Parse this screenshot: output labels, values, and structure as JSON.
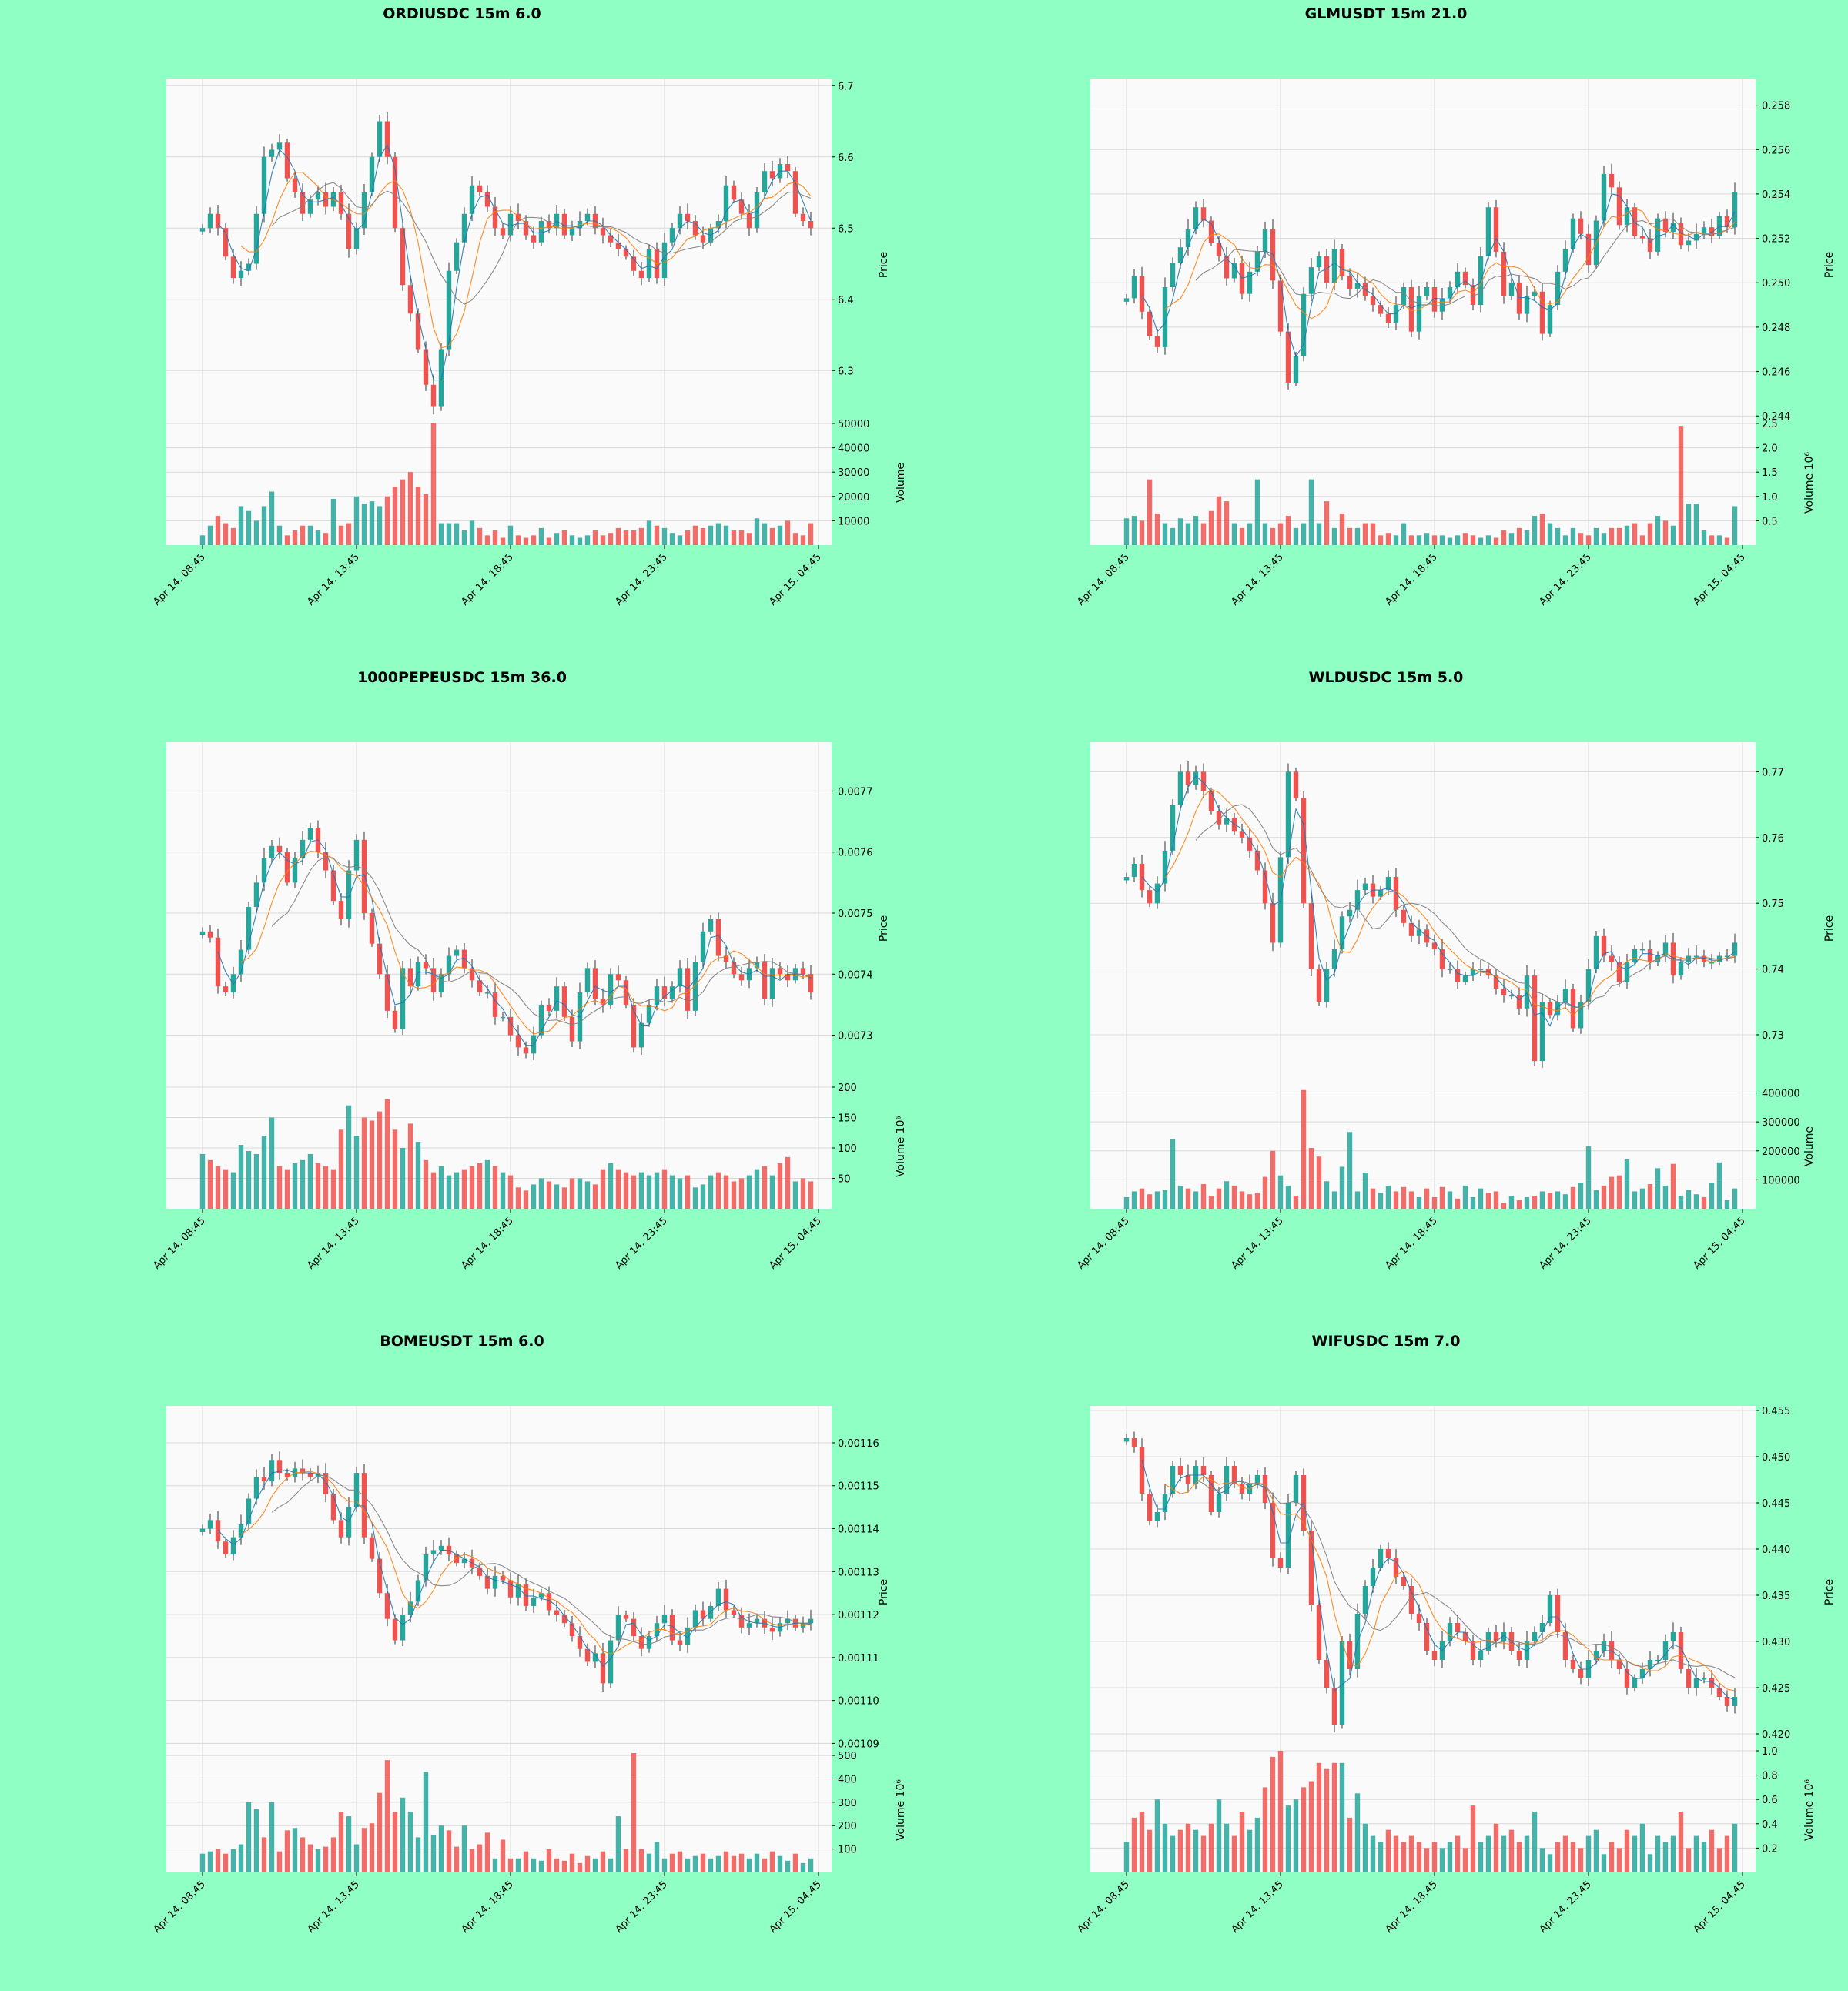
{
  "figure": {
    "background": "#90ffc4",
    "panel_background": "#fafafa",
    "grid_color": "#d9d9d9",
    "up_color": "#26a69a",
    "down_color": "#ef5350",
    "ma_fast_color": "#1f77b4",
    "ma_mid_color": "#ff7f0e",
    "ma_slow_color": "#7f7f7f"
  },
  "chart_data": [
    {
      "type": "candlestick",
      "title": "ORDIUSDC 15m 6.0",
      "ylabel": "Price",
      "price_ylim": [
        6.23,
        6.71
      ],
      "price_ticks": [
        "6.3",
        "6.4",
        "6.5",
        "6.6",
        "6.7"
      ],
      "volume_label": "Volume",
      "volume_ylim": [
        0,
        50000
      ],
      "volume_ticks": [
        "10000",
        "20000",
        "30000",
        "40000",
        "50000"
      ],
      "x_tick_labels": [
        "Apr 14, 08:45",
        "Apr 14, 13:45",
        "Apr 14, 18:45",
        "Apr 14, 23:45",
        "Apr 15, 04:45"
      ],
      "close": [
        6.5,
        6.52,
        6.5,
        6.46,
        6.43,
        6.44,
        6.45,
        6.52,
        6.6,
        6.61,
        6.62,
        6.57,
        6.55,
        6.52,
        6.54,
        6.55,
        6.53,
        6.55,
        6.52,
        6.47,
        6.5,
        6.55,
        6.6,
        6.65,
        6.6,
        6.5,
        6.42,
        6.38,
        6.33,
        6.28,
        6.25,
        6.33,
        6.44,
        6.48,
        6.52,
        6.56,
        6.55,
        6.53,
        6.5,
        6.49,
        6.52,
        6.51,
        6.49,
        6.48,
        6.51,
        6.5,
        6.52,
        6.49,
        6.5,
        6.51,
        6.52,
        6.5,
        6.49,
        6.48,
        6.47,
        6.46,
        6.44,
        6.43,
        6.47,
        6.43,
        6.48,
        6.5,
        6.52,
        6.51,
        6.49,
        6.48,
        6.5,
        6.51,
        6.56,
        6.54,
        6.52,
        6.5,
        6.55,
        6.58,
        6.57,
        6.59,
        6.58,
        6.52,
        6.51,
        6.5
      ],
      "volume": [
        4000,
        8000,
        12000,
        9000,
        7000,
        16000,
        14000,
        10000,
        16000,
        22000,
        8000,
        4000,
        6000,
        8000,
        8000,
        6000,
        5000,
        19000,
        8000,
        9000,
        20000,
        17000,
        18000,
        16000,
        20000,
        24000,
        27000,
        30000,
        24000,
        21000,
        50000,
        9000,
        9000,
        9000,
        6000,
        10000,
        7000,
        4000,
        6000,
        3000,
        8000,
        4000,
        3000,
        4000,
        7000,
        3000,
        5000,
        6000,
        4000,
        3000,
        4000,
        6000,
        4000,
        5000,
        7000,
        6000,
        6000,
        7000,
        10000,
        8000,
        7000,
        5000,
        4000,
        6000,
        8000,
        7000,
        8000,
        9000,
        8000,
        6000,
        6000,
        5000,
        11000,
        9000,
        7000,
        8000,
        10000,
        5000,
        4000,
        9000
      ]
    },
    {
      "type": "candlestick",
      "title": "GLMUSDT 15m 21.0",
      "ylabel": "Price",
      "price_ylim": [
        0.2438,
        0.2592
      ],
      "price_ticks": [
        "0.244",
        "0.246",
        "0.248",
        "0.250",
        "0.252",
        "0.254",
        "0.256",
        "0.258"
      ],
      "volume_label": "Volume  10⁶",
      "volume_ylim": [
        0,
        2.5
      ],
      "volume_ticks": [
        "0.5",
        "1.0",
        "1.5",
        "2.0",
        "2.5"
      ],
      "x_tick_labels": [
        "Apr 14, 08:45",
        "Apr 14, 13:45",
        "Apr 14, 18:45",
        "Apr 14, 23:45",
        "Apr 15, 04:45"
      ],
      "close": [
        0.2493,
        0.2503,
        0.2487,
        0.2476,
        0.2471,
        0.2498,
        0.2509,
        0.2516,
        0.2524,
        0.2534,
        0.2528,
        0.2518,
        0.2512,
        0.2502,
        0.2509,
        0.2495,
        0.2505,
        0.2514,
        0.2524,
        0.2501,
        0.2478,
        0.2455,
        0.2467,
        0.2495,
        0.2507,
        0.2512,
        0.25,
        0.2515,
        0.2503,
        0.2497,
        0.25,
        0.2494,
        0.249,
        0.2486,
        0.2482,
        0.249,
        0.2498,
        0.2478,
        0.2494,
        0.2498,
        0.2487,
        0.2493,
        0.2498,
        0.2505,
        0.2499,
        0.249,
        0.2512,
        0.2534,
        0.2514,
        0.2494,
        0.25,
        0.2486,
        0.2494,
        0.2496,
        0.2477,
        0.249,
        0.2505,
        0.2515,
        0.2529,
        0.2522,
        0.2508,
        0.2528,
        0.2549,
        0.2543,
        0.2526,
        0.2534,
        0.2521,
        0.252,
        0.2514,
        0.2529,
        0.2523,
        0.2527,
        0.2517,
        0.2519,
        0.2522,
        0.2525,
        0.2521,
        0.253,
        0.2525,
        0.2541
      ],
      "volume": [
        0.55,
        0.6,
        0.5,
        1.35,
        0.65,
        0.45,
        0.35,
        0.55,
        0.45,
        0.6,
        0.45,
        0.7,
        1.0,
        0.9,
        0.45,
        0.35,
        0.45,
        1.35,
        0.45,
        0.35,
        0.45,
        0.6,
        0.35,
        0.45,
        1.35,
        0.45,
        0.9,
        0.35,
        0.65,
        0.35,
        0.35,
        0.45,
        0.45,
        0.2,
        0.25,
        0.2,
        0.45,
        0.2,
        0.2,
        0.25,
        0.2,
        0.2,
        0.15,
        0.2,
        0.25,
        0.2,
        0.15,
        0.2,
        0.15,
        0.3,
        0.25,
        0.35,
        0.3,
        0.6,
        0.65,
        0.45,
        0.35,
        0.2,
        0.35,
        0.25,
        0.2,
        0.35,
        0.25,
        0.35,
        0.35,
        0.4,
        0.45,
        0.2,
        0.45,
        0.6,
        0.5,
        0.4,
        2.45,
        0.85,
        0.85,
        0.3,
        0.2,
        0.2,
        0.15,
        0.8
      ]
    },
    {
      "type": "candlestick",
      "title": "1000PEPEUSDC 15m 36.0",
      "ylabel": "Price",
      "price_ylim": [
        0.00722,
        0.00778
      ],
      "price_ticks": [
        "0.0073",
        "0.0074",
        "0.0075",
        "0.0076",
        "0.0077"
      ],
      "volume_label": "Volume  10⁶",
      "volume_ylim": [
        0,
        200
      ],
      "volume_ticks": [
        "50",
        "100",
        "150",
        "200"
      ],
      "x_tick_labels": [
        "Apr 14, 08:45",
        "Apr 14, 13:45",
        "Apr 14, 18:45",
        "Apr 14, 23:45",
        "Apr 15, 04:45"
      ],
      "close": [
        0.00747,
        0.00746,
        0.00738,
        0.00737,
        0.0074,
        0.00744,
        0.00751,
        0.00755,
        0.00759,
        0.00761,
        0.0076,
        0.00755,
        0.00759,
        0.00762,
        0.00764,
        0.0076,
        0.00757,
        0.00752,
        0.00749,
        0.00757,
        0.00762,
        0.0075,
        0.00745,
        0.0074,
        0.00734,
        0.00731,
        0.00741,
        0.00738,
        0.00742,
        0.00741,
        0.00737,
        0.0074,
        0.00743,
        0.00744,
        0.00741,
        0.00739,
        0.00737,
        0.00737,
        0.00733,
        0.00733,
        0.0073,
        0.00728,
        0.00727,
        0.0073,
        0.00735,
        0.00734,
        0.00738,
        0.00733,
        0.00729,
        0.00737,
        0.00741,
        0.00736,
        0.00735,
        0.0074,
        0.00739,
        0.00735,
        0.00728,
        0.00732,
        0.00735,
        0.00738,
        0.00736,
        0.00738,
        0.00741,
        0.00734,
        0.00742,
        0.00747,
        0.00749,
        0.00743,
        0.00742,
        0.0074,
        0.00739,
        0.00741,
        0.00742,
        0.00736,
        0.00741,
        0.0074,
        0.00739,
        0.00741,
        0.0074,
        0.00737
      ],
      "volume": [
        90,
        80,
        70,
        65,
        60,
        105,
        95,
        90,
        120,
        150,
        70,
        65,
        75,
        80,
        90,
        75,
        70,
        65,
        130,
        170,
        120,
        150,
        145,
        160,
        180,
        130,
        100,
        140,
        110,
        80,
        60,
        70,
        55,
        60,
        65,
        70,
        75,
        80,
        70,
        60,
        55,
        35,
        30,
        40,
        50,
        45,
        40,
        35,
        50,
        50,
        45,
        40,
        65,
        75,
        65,
        60,
        55,
        60,
        55,
        60,
        65,
        55,
        50,
        55,
        35,
        40,
        55,
        60,
        55,
        45,
        50,
        55,
        65,
        70,
        55,
        75,
        85,
        45,
        50,
        45
      ]
    },
    {
      "type": "candlestick",
      "title": "WLDUSDC 15m 5.0",
      "ylabel": "Price",
      "price_ylim": [
        0.7225,
        0.7745
      ],
      "price_ticks": [
        "0.73",
        "0.74",
        "0.75",
        "0.76",
        "0.77"
      ],
      "volume_label": "Volume",
      "volume_ylim": [
        0,
        420000
      ],
      "volume_ticks": [
        "100000",
        "200000",
        "300000",
        "400000"
      ],
      "x_tick_labels": [
        "Apr 14, 08:45",
        "Apr 14, 13:45",
        "Apr 14, 18:45",
        "Apr 14, 23:45",
        "Apr 15, 04:45"
      ],
      "close": [
        0.754,
        0.756,
        0.752,
        0.75,
        0.753,
        0.758,
        0.765,
        0.77,
        0.768,
        0.77,
        0.767,
        0.764,
        0.762,
        0.763,
        0.761,
        0.76,
        0.758,
        0.755,
        0.75,
        0.744,
        0.757,
        0.77,
        0.766,
        0.75,
        0.74,
        0.735,
        0.74,
        0.743,
        0.748,
        0.749,
        0.752,
        0.753,
        0.751,
        0.752,
        0.754,
        0.749,
        0.747,
        0.745,
        0.746,
        0.744,
        0.743,
        0.74,
        0.74,
        0.738,
        0.739,
        0.74,
        0.74,
        0.739,
        0.737,
        0.736,
        0.736,
        0.734,
        0.739,
        0.726,
        0.735,
        0.733,
        0.735,
        0.737,
        0.731,
        0.735,
        0.74,
        0.745,
        0.742,
        0.741,
        0.738,
        0.741,
        0.743,
        0.743,
        0.741,
        0.742,
        0.744,
        0.739,
        0.741,
        0.742,
        0.742,
        0.741,
        0.741,
        0.742,
        0.742,
        0.744
      ],
      "volume": [
        40000,
        60000,
        70000,
        50000,
        60000,
        65000,
        240000,
        80000,
        70000,
        60000,
        85000,
        45000,
        70000,
        95000,
        80000,
        60000,
        50000,
        55000,
        110000,
        200000,
        115000,
        80000,
        45000,
        410000,
        210000,
        180000,
        95000,
        60000,
        145000,
        265000,
        60000,
        125000,
        70000,
        55000,
        80000,
        60000,
        75000,
        60000,
        40000,
        70000,
        40000,
        75000,
        60000,
        35000,
        80000,
        40000,
        70000,
        55000,
        60000,
        20000,
        45000,
        30000,
        40000,
        45000,
        60000,
        55000,
        60000,
        50000,
        75000,
        90000,
        215000,
        65000,
        80000,
        110000,
        115000,
        170000,
        60000,
        70000,
        85000,
        140000,
        80000,
        155000,
        45000,
        65000,
        50000,
        40000,
        90000,
        160000,
        30000,
        70000
      ]
    },
    {
      "type": "candlestick",
      "title": "BOMEUSDT 15m 6.0",
      "ylabel": "Price",
      "price_ylim": [
        0.001089,
        0.0011686
      ],
      "price_ticks": [
        "0.00109",
        "0.00110",
        "0.00111",
        "0.00112",
        "0.00113",
        "0.00114",
        "0.00115",
        "0.00116"
      ],
      "volume_label": "Volume  10⁶",
      "volume_ylim": [
        0,
        520
      ],
      "volume_ticks": [
        "100",
        "200",
        "300",
        "400",
        "500"
      ],
      "x_tick_labels": [
        "Apr 14, 08:45",
        "Apr 14, 13:45",
        "Apr 14, 18:45",
        "Apr 14, 23:45",
        "Apr 15, 04:45"
      ],
      "close": [
        0.00114,
        0.001142,
        0.001137,
        0.001134,
        0.001138,
        0.001141,
        0.001147,
        0.001152,
        0.001151,
        0.001156,
        0.001153,
        0.001152,
        0.001154,
        0.001153,
        0.001152,
        0.001153,
        0.001148,
        0.001142,
        0.001138,
        0.001145,
        0.001153,
        0.001138,
        0.001133,
        0.001125,
        0.001119,
        0.001114,
        0.00112,
        0.001123,
        0.001128,
        0.001134,
        0.001135,
        0.001136,
        0.001134,
        0.001132,
        0.001133,
        0.001131,
        0.001129,
        0.001126,
        0.001129,
        0.001128,
        0.001124,
        0.001127,
        0.001122,
        0.001124,
        0.001125,
        0.001121,
        0.00112,
        0.001118,
        0.001115,
        0.001112,
        0.001109,
        0.001111,
        0.001104,
        0.001114,
        0.00112,
        0.001119,
        0.001115,
        0.001112,
        0.001115,
        0.001118,
        0.00112,
        0.001114,
        0.001113,
        0.001117,
        0.001121,
        0.001119,
        0.001122,
        0.001126,
        0.001121,
        0.00112,
        0.001117,
        0.001118,
        0.001119,
        0.001117,
        0.001116,
        0.001118,
        0.001119,
        0.001117,
        0.001118,
        0.001119
      ],
      "volume": [
        80,
        90,
        100,
        80,
        100,
        120,
        300,
        270,
        150,
        300,
        90,
        180,
        190,
        150,
        120,
        100,
        110,
        150,
        260,
        240,
        120,
        190,
        210,
        340,
        480,
        260,
        320,
        260,
        150,
        430,
        160,
        200,
        180,
        110,
        200,
        100,
        120,
        170,
        60,
        140,
        60,
        60,
        90,
        60,
        50,
        100,
        60,
        50,
        80,
        40,
        70,
        60,
        90,
        60,
        240,
        100,
        510,
        100,
        80,
        130,
        60,
        80,
        90,
        60,
        70,
        80,
        60,
        70,
        90,
        70,
        80,
        60,
        80,
        60,
        90,
        70,
        50,
        80,
        40,
        60
      ]
    },
    {
      "type": "candlestick",
      "title": "WIFUSDC 15m 7.0",
      "ylabel": "Price",
      "price_ylim": [
        0.4185,
        0.4555
      ],
      "price_ticks": [
        "0.420",
        "0.425",
        "0.430",
        "0.435",
        "0.440",
        "0.445",
        "0.450",
        "0.455"
      ],
      "volume_label": "Volume  10⁶",
      "volume_ylim": [
        0,
        1.0
      ],
      "volume_ticks": [
        "0.2",
        "0.4",
        "0.6",
        "0.8",
        "1.0"
      ],
      "x_tick_labels": [
        "Apr 14, 08:45",
        "Apr 14, 13:45",
        "Apr 14, 18:45",
        "Apr 14, 23:45",
        "Apr 15, 04:45"
      ],
      "close": [
        0.452,
        0.451,
        0.446,
        0.443,
        0.444,
        0.446,
        0.449,
        0.448,
        0.447,
        0.449,
        0.448,
        0.444,
        0.446,
        0.449,
        0.447,
        0.446,
        0.447,
        0.448,
        0.445,
        0.439,
        0.438,
        0.445,
        0.448,
        0.442,
        0.434,
        0.428,
        0.425,
        0.421,
        0.43,
        0.427,
        0.433,
        0.436,
        0.438,
        0.44,
        0.439,
        0.437,
        0.436,
        0.433,
        0.432,
        0.429,
        0.428,
        0.43,
        0.432,
        0.431,
        0.43,
        0.428,
        0.429,
        0.431,
        0.43,
        0.431,
        0.429,
        0.428,
        0.43,
        0.431,
        0.432,
        0.435,
        0.431,
        0.428,
        0.427,
        0.426,
        0.428,
        0.429,
        0.43,
        0.428,
        0.427,
        0.425,
        0.426,
        0.427,
        0.428,
        0.428,
        0.43,
        0.431,
        0.427,
        0.425,
        0.426,
        0.426,
        0.425,
        0.424,
        0.423,
        0.424
      ],
      "volume": [
        0.25,
        0.45,
        0.5,
        0.35,
        0.6,
        0.4,
        0.3,
        0.35,
        0.4,
        0.35,
        0.3,
        0.4,
        0.6,
        0.4,
        0.3,
        0.5,
        0.35,
        0.45,
        0.7,
        0.95,
        1.0,
        0.55,
        0.6,
        0.7,
        0.75,
        0.9,
        0.85,
        0.9,
        0.9,
        0.45,
        0.65,
        0.4,
        0.3,
        0.25,
        0.35,
        0.3,
        0.25,
        0.3,
        0.25,
        0.2,
        0.25,
        0.2,
        0.25,
        0.3,
        0.2,
        0.55,
        0.25,
        0.3,
        0.4,
        0.3,
        0.35,
        0.25,
        0.3,
        0.5,
        0.2,
        0.15,
        0.25,
        0.3,
        0.25,
        0.2,
        0.3,
        0.35,
        0.15,
        0.25,
        0.2,
        0.35,
        0.3,
        0.4,
        0.15,
        0.3,
        0.25,
        0.3,
        0.5,
        0.2,
        0.3,
        0.25,
        0.35,
        0.2,
        0.3,
        0.4
      ]
    }
  ]
}
